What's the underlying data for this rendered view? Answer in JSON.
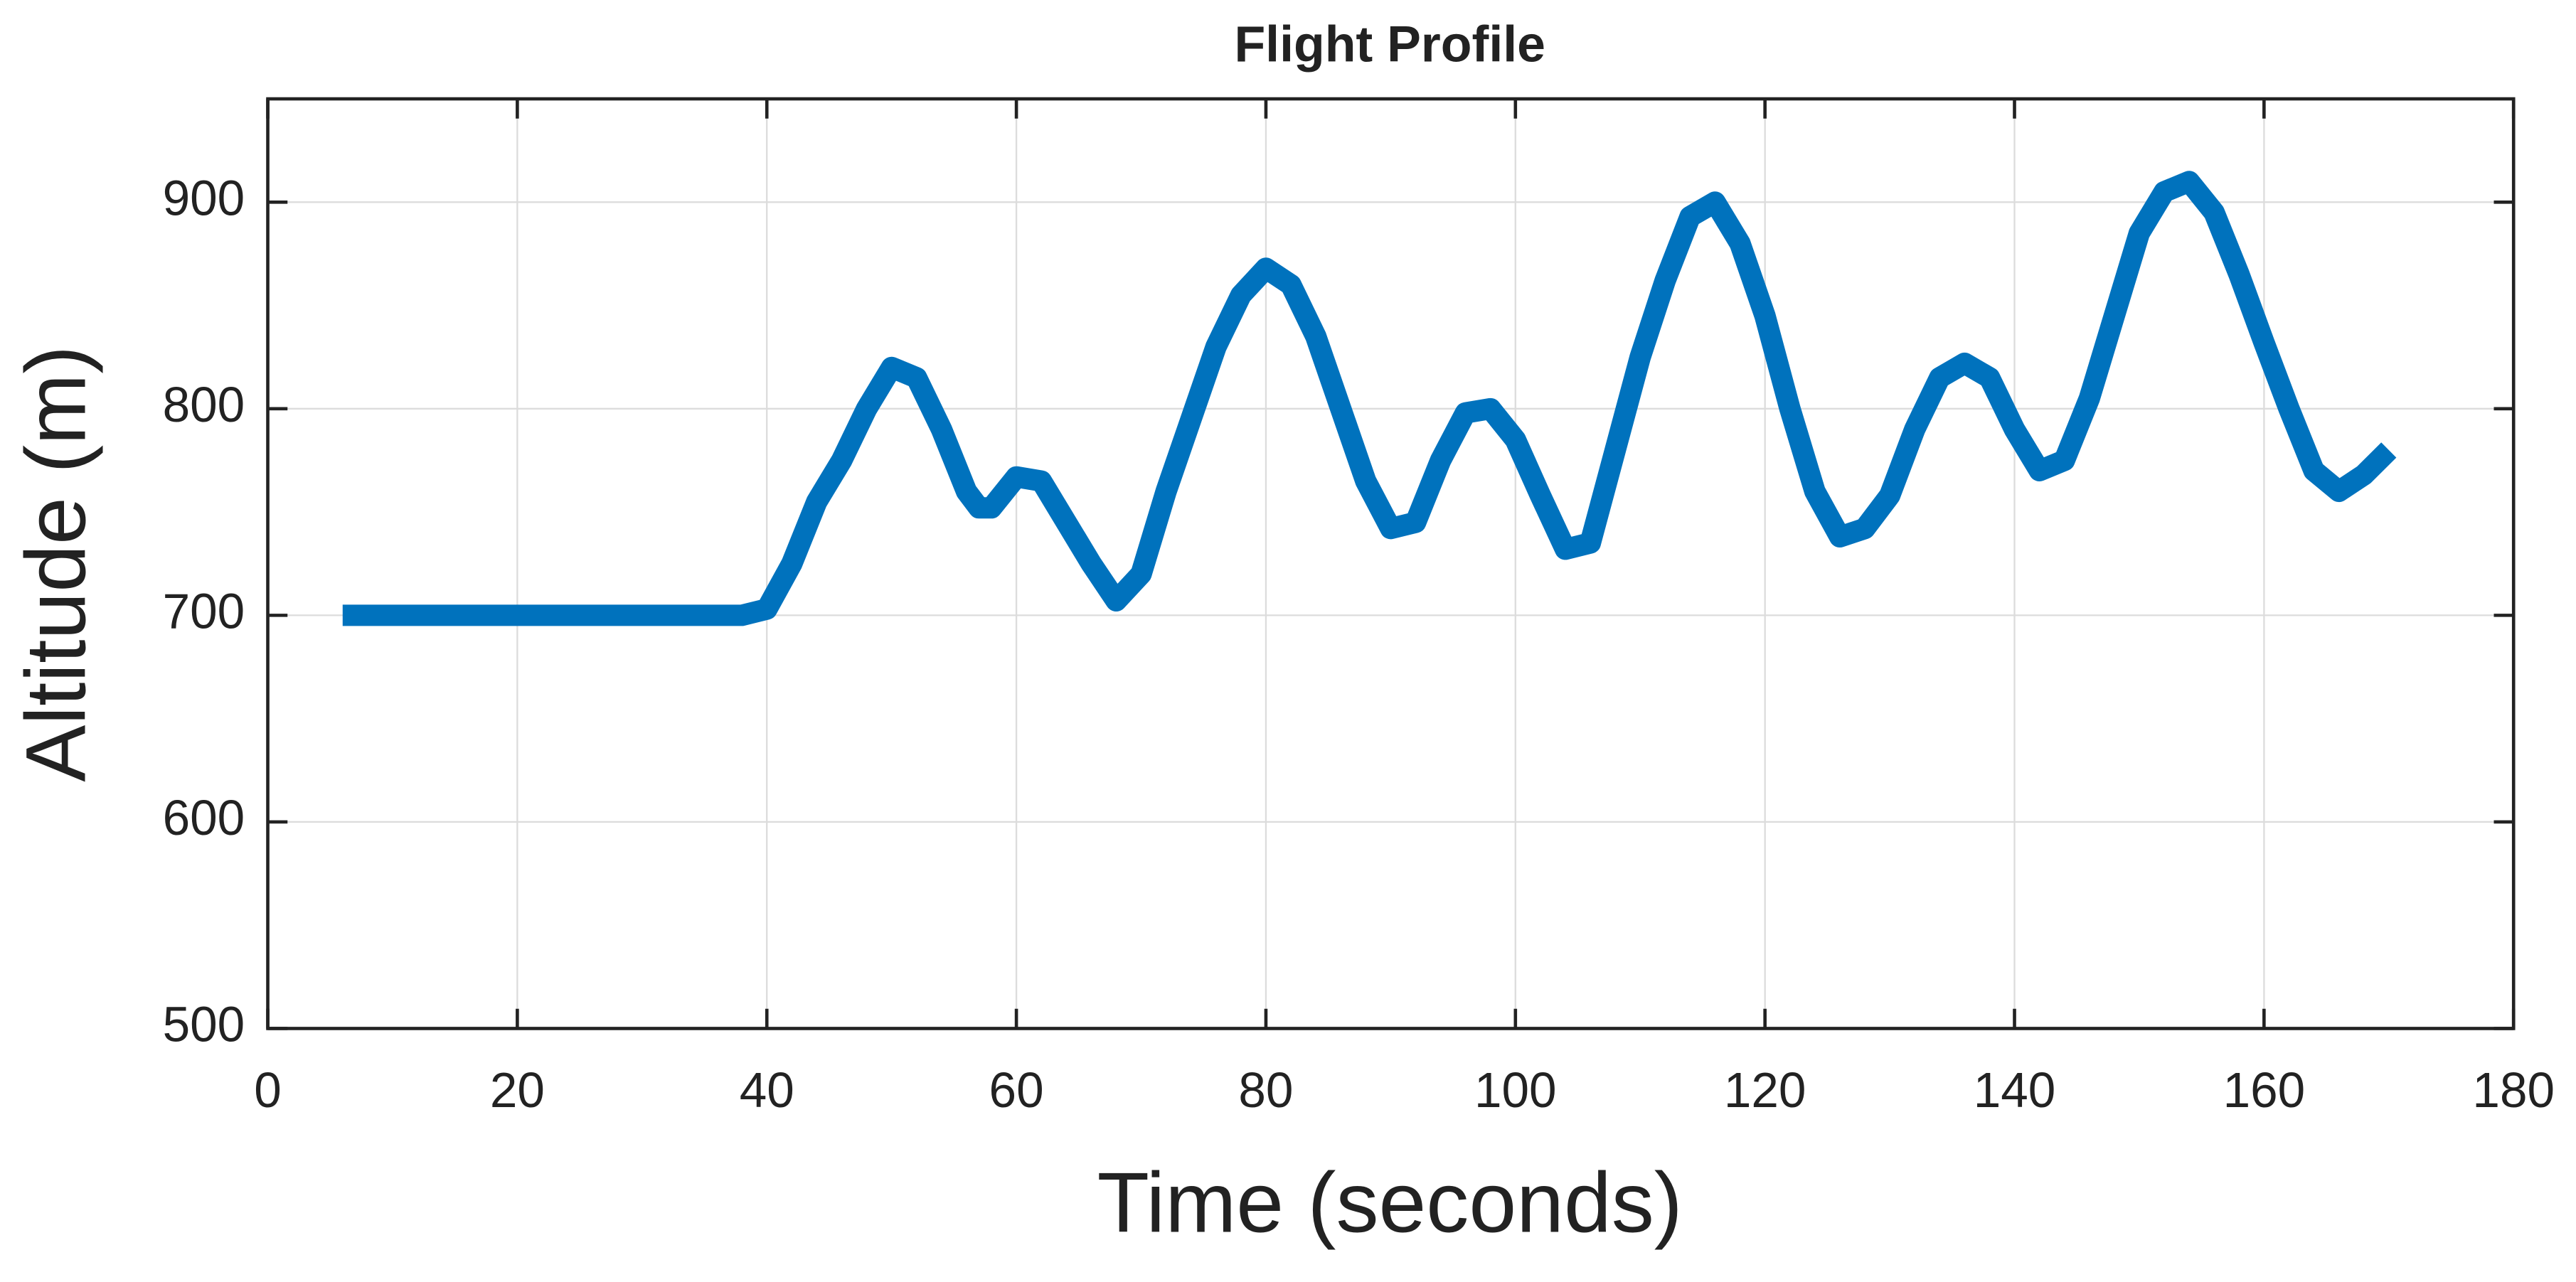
{
  "chart_data": {
    "type": "line",
    "title": "Flight Profile",
    "xlabel": "Time (seconds)",
    "ylabel": "Altitude (m)",
    "x": [
      6,
      38,
      40,
      42,
      44,
      46,
      48,
      50,
      52,
      54,
      56,
      57,
      58,
      60,
      62,
      64,
      66,
      68,
      70,
      72,
      74,
      76,
      78,
      80,
      82,
      84,
      86,
      88,
      90,
      92,
      94,
      96,
      98,
      100,
      102,
      104,
      106,
      108,
      110,
      112,
      114,
      116,
      118,
      120,
      122,
      124,
      126,
      128,
      130,
      132,
      134,
      136,
      138,
      140,
      142,
      144,
      146,
      148,
      150,
      152,
      154,
      156,
      158,
      160,
      162,
      164,
      166,
      168,
      170
    ],
    "series": [
      {
        "name": "Altitude",
        "color": "#0072bd",
        "values": [
          700,
          700,
          703,
          725,
          755,
          775,
          800,
          820,
          815,
          790,
          760,
          752,
          752,
          767,
          765,
          745,
          725,
          707,
          720,
          760,
          795,
          830,
          855,
          868,
          860,
          835,
          800,
          765,
          742,
          745,
          775,
          798,
          800,
          785,
          758,
          732,
          735,
          780,
          825,
          862,
          893,
          900,
          880,
          845,
          800,
          760,
          738,
          742,
          758,
          790,
          815,
          822,
          815,
          790,
          770,
          775,
          805,
          845,
          885,
          905,
          910,
          895,
          865,
          832,
          800,
          770,
          760,
          768,
          780
        ]
      }
    ],
    "xlim": [
      0,
      180
    ],
    "xticks": [
      0,
      20,
      40,
      60,
      80,
      100,
      120,
      140,
      160,
      180
    ],
    "ylim": [
      500,
      950
    ],
    "yticks": [
      500,
      600,
      700,
      800,
      900
    ],
    "grid": true
  }
}
